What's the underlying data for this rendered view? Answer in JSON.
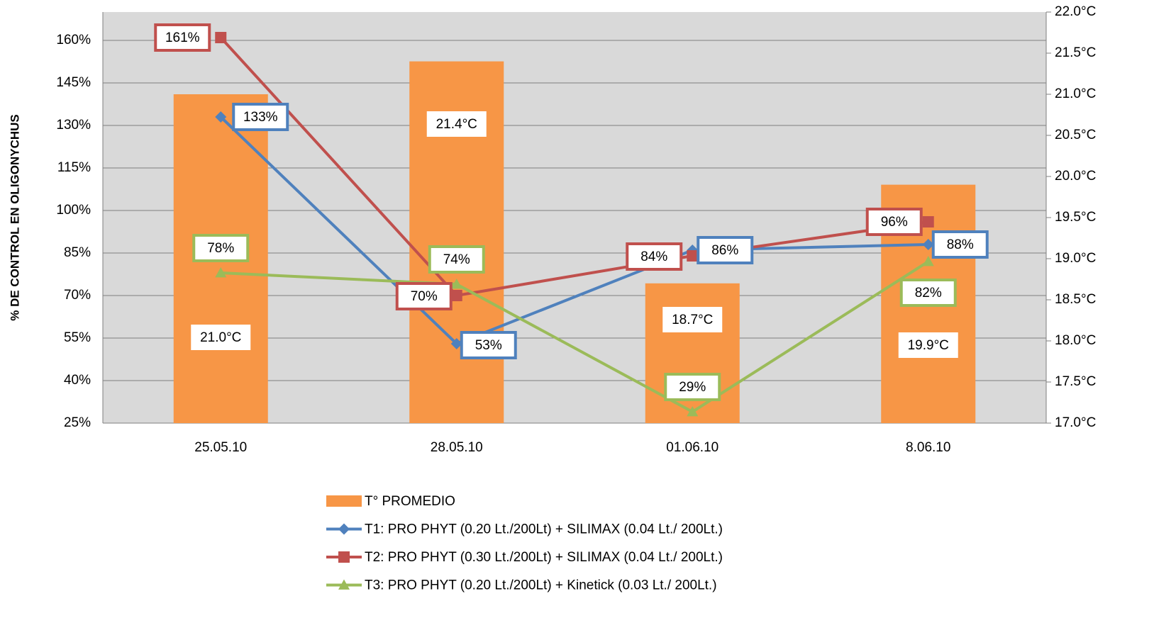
{
  "chart_data": {
    "type": "combo",
    "y_axis_label": "% DE CONTROL EN OLIGONYCHUS",
    "categories": [
      "25.05.10",
      "28.05.10",
      "01.06.10",
      "8.06.10"
    ],
    "ylim": [
      25,
      170
    ],
    "yticks": [
      {
        "value": 25,
        "label": "25%"
      },
      {
        "value": 40,
        "label": "40%"
      },
      {
        "value": 55,
        "label": "55%"
      },
      {
        "value": 70,
        "label": "70%"
      },
      {
        "value": 85,
        "label": "85%"
      },
      {
        "value": 100,
        "label": "100%"
      },
      {
        "value": 115,
        "label": "115%"
      },
      {
        "value": 130,
        "label": "130%"
      },
      {
        "value": 145,
        "label": "145%"
      },
      {
        "value": 160,
        "label": "160%"
      }
    ],
    "y2lim": [
      17,
      22
    ],
    "y2ticks": [
      {
        "value": 17,
        "label": "17.0°C"
      },
      {
        "value": 17.5,
        "label": "17.5°C"
      },
      {
        "value": 18,
        "label": "18.0°C"
      },
      {
        "value": 18.5,
        "label": "18.5°C"
      },
      {
        "value": 19,
        "label": "19.0°C"
      },
      {
        "value": 19.5,
        "label": "19.5°C"
      },
      {
        "value": 20,
        "label": "20.0°C"
      },
      {
        "value": 20.5,
        "label": "20.5°C"
      },
      {
        "value": 21,
        "label": "21.0°C"
      },
      {
        "value": 21.5,
        "label": "21.5°C"
      },
      {
        "value": 22,
        "label": "22.0°C"
      }
    ],
    "grid": true,
    "series": [
      {
        "name": "T° PROMEDIO",
        "type": "bar",
        "axis": "y2",
        "color": "#f79646",
        "values": [
          21.0,
          21.4,
          18.7,
          19.9
        ],
        "value_labels": [
          "21.0°C",
          "21.4°C",
          "18.7°C",
          "19.9°C"
        ]
      },
      {
        "name": "T1: PRO PHYT (0.20 Lt./200Lt) + SILIMAX (0.04 Lt./ 200Lt.)",
        "type": "line",
        "marker": "diamond",
        "color": "#4f81bd",
        "values": [
          133,
          53,
          86,
          88
        ],
        "value_labels": [
          "133%",
          "53%",
          "86%",
          "88%"
        ]
      },
      {
        "name": "T2: PRO PHYT (0.30 Lt./200Lt) + SILIMAX (0.04 Lt./ 200Lt.)",
        "type": "line",
        "marker": "square",
        "color": "#c0504d",
        "values": [
          161,
          70,
          84,
          96
        ],
        "value_labels": [
          "161%",
          "70%",
          "84%",
          "96%"
        ]
      },
      {
        "name": "T3: PRO PHYT (0.20 Lt./200Lt) + Kinetick (0.03 Lt./ 200Lt.)",
        "type": "line",
        "marker": "triangle",
        "color": "#9bbb59",
        "values": [
          78,
          74,
          29,
          82
        ],
        "value_labels": [
          "78%",
          "74%",
          "29%",
          "82%"
        ]
      }
    ]
  }
}
